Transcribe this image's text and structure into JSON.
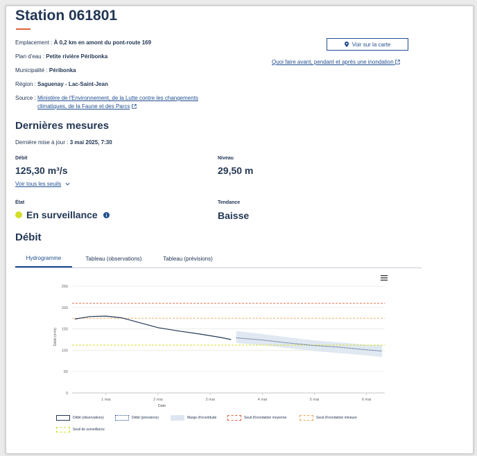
{
  "station": {
    "title": "Station 061801"
  },
  "details": {
    "emplacement_label": "Emplacement :",
    "emplacement_value": "À 0,2 km en amont du pont-route 169",
    "plan_label": "Plan d'eau :",
    "plan_value": "Petite rivière Péribonka",
    "municipalite_label": "Municipalité :",
    "municipalite_value": "Péribonka",
    "region_label": "Région :",
    "region_value": "Saguenay - Lac-Saint-Jean",
    "source_label": "Source :",
    "source_line1": "Ministère de l'Environnement, de la Lutte contre les changements",
    "source_line2": "climatiques, de la Faune et des Parcs"
  },
  "actions": {
    "map_button": "Voir sur la carte",
    "flood_link": "Quoi faire avant, pendant et après une inondation"
  },
  "measures": {
    "heading": "Dernières mesures",
    "update_label": "Dernière mise à jour :",
    "update_value": "3 mai 2025, 7:30",
    "debit_label": "Débit",
    "debit_value": "125,30 m³/s",
    "seuils_link": "Voir tous les seuils",
    "niveau_label": "Niveau",
    "niveau_value": "29,50 m",
    "etat_label": "État",
    "etat_value": "En surveillance",
    "tendance_label": "Tendance",
    "tendance_value": "Baisse"
  },
  "debit_section": {
    "heading": "Débit",
    "tabs": [
      "Hydrogramme",
      "Tableau (observations)",
      "Tableau (prévisions)"
    ]
  },
  "colors": {
    "accent": "#e0603b",
    "navy": "#223654",
    "link": "#1f4d8f",
    "status_yellow": "#d4de2a"
  },
  "chart_data": {
    "type": "line",
    "xlabel": "Date",
    "ylabel": "Débit (m³/s)",
    "ylim": [
      0,
      250
    ],
    "yticks": [
      "0",
      "50",
      "100",
      "150",
      "200",
      "250"
    ],
    "xticks": [
      "1 mai",
      "2 mai",
      "3 mai",
      "4 mai",
      "5 mai",
      "6 mai"
    ],
    "thresholds": [
      {
        "name": "Seuil d'inondation moyenne",
        "value": 210,
        "color": "#e0603b"
      },
      {
        "name": "Seuil d'inondation mineure",
        "value": 175,
        "color": "#f0a050"
      },
      {
        "name": "Seuil de surveillance",
        "value": 112,
        "color": "#d4de2a"
      }
    ],
    "series": [
      {
        "name": "Débit (observations)",
        "x": [
          -0.6,
          -0.3,
          0,
          0.3,
          0.6,
          1.0,
          1.4,
          1.8,
          2.2,
          2.4
        ],
        "values": [
          173,
          179,
          180,
          176,
          166,
          153,
          145,
          138,
          130,
          125
        ]
      },
      {
        "name": "Débit (prévisions)",
        "x": [
          2.5,
          3.0,
          3.5,
          4.0,
          4.5,
          5.0,
          5.3
        ],
        "values": [
          129,
          124,
          117,
          111,
          107,
          101,
          98
        ]
      }
    ],
    "uncertainty": {
      "name": "Marge d'incertitude",
      "x": [
        2.5,
        3.0,
        3.5,
        4.0,
        4.5,
        5.0,
        5.3
      ],
      "upper": [
        145,
        138,
        130,
        123,
        118,
        113,
        112
      ],
      "lower": [
        117,
        112,
        105,
        98,
        93,
        88,
        84
      ]
    },
    "x_range": [
      -0.65,
      5.35
    ],
    "legend_position": "bottom"
  }
}
